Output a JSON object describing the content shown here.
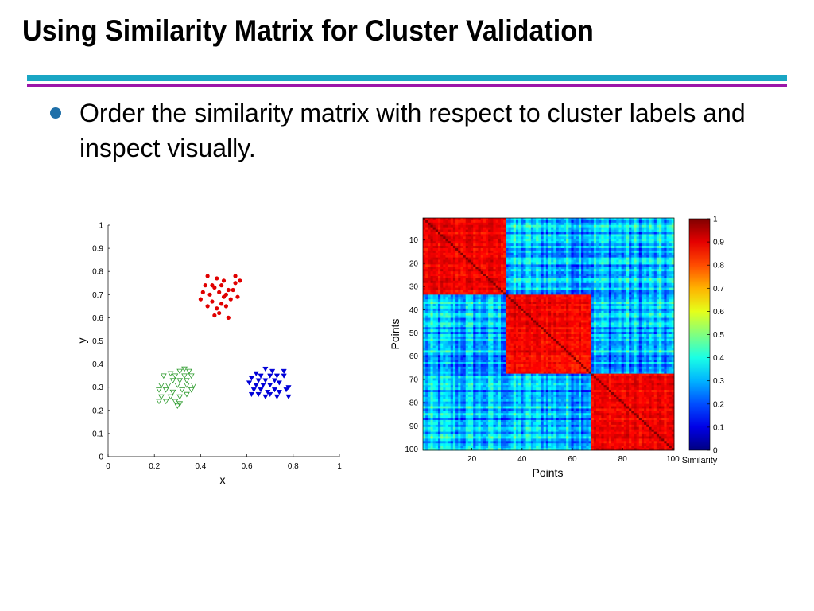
{
  "slide": {
    "title": "Using Similarity Matrix for Cluster Validation",
    "bullet": "Order the similarity matrix with respect to cluster labels and inspect visually."
  },
  "colors": {
    "title_rule_top": "#1aa6c4",
    "title_rule_bottom": "#9b16a8",
    "bullet": "#1e6fa8",
    "cluster_red": "#e00000",
    "cluster_green": "#2a9a2a",
    "cluster_blue": "#0000d8"
  },
  "chart_data": [
    {
      "type": "scatter",
      "title": "",
      "xlabel": "x",
      "ylabel": "y",
      "xlim": [
        0,
        1
      ],
      "ylim": [
        0,
        1
      ],
      "x_ticks": [
        "0",
        "0.2",
        "0.4",
        "0.6",
        "0.8",
        "1"
      ],
      "y_ticks": [
        "0",
        "0.1",
        "0.2",
        "0.3",
        "0.4",
        "0.5",
        "0.6",
        "0.7",
        "0.8",
        "0.9",
        "1"
      ],
      "grid": false,
      "series": [
        {
          "marker": "dot",
          "color": "#e00000",
          "points": [
            [
              0.43,
              0.78
            ],
            [
              0.47,
              0.77
            ],
            [
              0.5,
              0.76
            ],
            [
              0.55,
              0.78
            ],
            [
              0.57,
              0.76
            ],
            [
              0.42,
              0.74
            ],
            [
              0.46,
              0.73
            ],
            [
              0.49,
              0.74
            ],
            [
              0.52,
              0.72
            ],
            [
              0.55,
              0.75
            ],
            [
              0.41,
              0.71
            ],
            [
              0.44,
              0.7
            ],
            [
              0.48,
              0.71
            ],
            [
              0.51,
              0.7
            ],
            [
              0.54,
              0.72
            ],
            [
              0.4,
              0.68
            ],
            [
              0.45,
              0.67
            ],
            [
              0.49,
              0.66
            ],
            [
              0.53,
              0.68
            ],
            [
              0.56,
              0.69
            ],
            [
              0.43,
              0.65
            ],
            [
              0.47,
              0.64
            ],
            [
              0.51,
              0.65
            ],
            [
              0.46,
              0.61
            ],
            [
              0.48,
              0.62
            ],
            [
              0.52,
              0.6
            ],
            [
              0.45,
              0.74
            ],
            [
              0.5,
              0.69
            ]
          ]
        },
        {
          "marker": "triangle-down",
          "color": "#2a9a2a",
          "open": true,
          "points": [
            [
              0.33,
              0.38
            ],
            [
              0.35,
              0.37
            ],
            [
              0.31,
              0.37
            ],
            [
              0.27,
              0.36
            ],
            [
              0.29,
              0.35
            ],
            [
              0.33,
              0.35
            ],
            [
              0.36,
              0.35
            ],
            [
              0.24,
              0.35
            ],
            [
              0.28,
              0.33
            ],
            [
              0.31,
              0.33
            ],
            [
              0.34,
              0.33
            ],
            [
              0.23,
              0.31
            ],
            [
              0.26,
              0.31
            ],
            [
              0.3,
              0.31
            ],
            [
              0.34,
              0.31
            ],
            [
              0.37,
              0.31
            ],
            [
              0.22,
              0.29
            ],
            [
              0.25,
              0.29
            ],
            [
              0.28,
              0.28
            ],
            [
              0.32,
              0.29
            ],
            [
              0.36,
              0.29
            ],
            [
              0.23,
              0.26
            ],
            [
              0.27,
              0.26
            ],
            [
              0.31,
              0.26
            ],
            [
              0.34,
              0.27
            ],
            [
              0.22,
              0.24
            ],
            [
              0.25,
              0.24
            ],
            [
              0.29,
              0.24
            ],
            [
              0.31,
              0.23
            ],
            [
              0.3,
              0.22
            ]
          ]
        },
        {
          "marker": "triangle-down",
          "color": "#0000d8",
          "open": false,
          "points": [
            [
              0.68,
              0.38
            ],
            [
              0.71,
              0.37
            ],
            [
              0.76,
              0.37
            ],
            [
              0.64,
              0.36
            ],
            [
              0.66,
              0.35
            ],
            [
              0.7,
              0.35
            ],
            [
              0.73,
              0.35
            ],
            [
              0.76,
              0.35
            ],
            [
              0.62,
              0.34
            ],
            [
              0.65,
              0.33
            ],
            [
              0.68,
              0.33
            ],
            [
              0.72,
              0.33
            ],
            [
              0.61,
              0.32
            ],
            [
              0.64,
              0.31
            ],
            [
              0.67,
              0.31
            ],
            [
              0.7,
              0.31
            ],
            [
              0.74,
              0.32
            ],
            [
              0.78,
              0.3
            ],
            [
              0.63,
              0.29
            ],
            [
              0.66,
              0.29
            ],
            [
              0.69,
              0.28
            ],
            [
              0.72,
              0.29
            ],
            [
              0.77,
              0.29
            ],
            [
              0.62,
              0.27
            ],
            [
              0.65,
              0.27
            ],
            [
              0.7,
              0.27
            ],
            [
              0.74,
              0.28
            ],
            [
              0.68,
              0.26
            ],
            [
              0.73,
              0.26
            ],
            [
              0.78,
              0.26
            ]
          ]
        }
      ]
    },
    {
      "type": "heatmap",
      "title": "",
      "xlabel": "Points",
      "ylabel": "Points",
      "n_points": 100,
      "clusters": [
        {
          "start": 1,
          "end": 33
        },
        {
          "start": 34,
          "end": 67
        },
        {
          "start": 68,
          "end": 100
        }
      ],
      "within_cluster_similarity": 0.88,
      "between_cluster_similarity": 0.3,
      "x_ticks": [
        "20",
        "40",
        "60",
        "80",
        "100"
      ],
      "y_ticks": [
        "10",
        "20",
        "30",
        "40",
        "50",
        "60",
        "70",
        "80",
        "90",
        "100"
      ],
      "colorbar": {
        "label": "Similarity",
        "range": [
          0,
          1
        ],
        "ticks": [
          "0",
          "0.1",
          "0.2",
          "0.3",
          "0.4",
          "0.5",
          "0.6",
          "0.7",
          "0.8",
          "0.9",
          "1"
        ],
        "colormap": "jet"
      }
    }
  ]
}
